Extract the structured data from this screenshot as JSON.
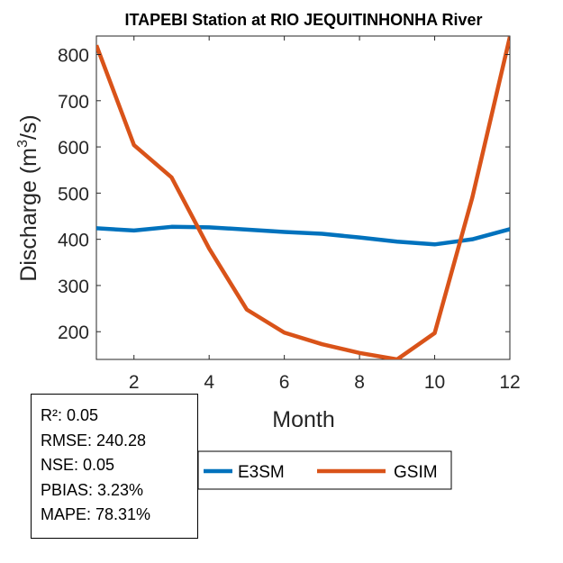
{
  "chart_data": {
    "type": "line",
    "title": "ITAPEBI  Station at  RIO JEQUITINHONHA  River",
    "xlabel": "Month",
    "ylabel_main": "Discharge (m",
    "ylabel_sup": "3",
    "ylabel_tail": "/s)",
    "xlim": [
      1,
      12
    ],
    "ylim": [
      140,
      840
    ],
    "xticks": [
      2,
      4,
      6,
      8,
      10,
      12
    ],
    "yticks": [
      200,
      300,
      400,
      500,
      600,
      700,
      800
    ],
    "x": [
      1,
      2,
      3,
      4,
      5,
      6,
      7,
      8,
      9,
      10,
      11,
      12
    ],
    "series": [
      {
        "name": "E3SM",
        "color": "#0072BD",
        "values": [
          424,
          419,
          427,
          426,
          421,
          416,
          412,
          404,
          395,
          389,
          400,
          422
        ]
      },
      {
        "name": "GSIM",
        "color": "#D95319",
        "values": [
          820,
          604,
          534,
          380,
          248,
          198,
          173,
          154,
          140,
          197,
          490,
          838
        ]
      }
    ],
    "legend_location": "bottom",
    "grid": false
  },
  "stats": {
    "r2": "R²: 0.05",
    "rmse": "RMSE: 240.28",
    "nse": "NSE: 0.05",
    "pbias": "PBIAS: 3.23%",
    "mape": "MAPE: 78.31%"
  }
}
